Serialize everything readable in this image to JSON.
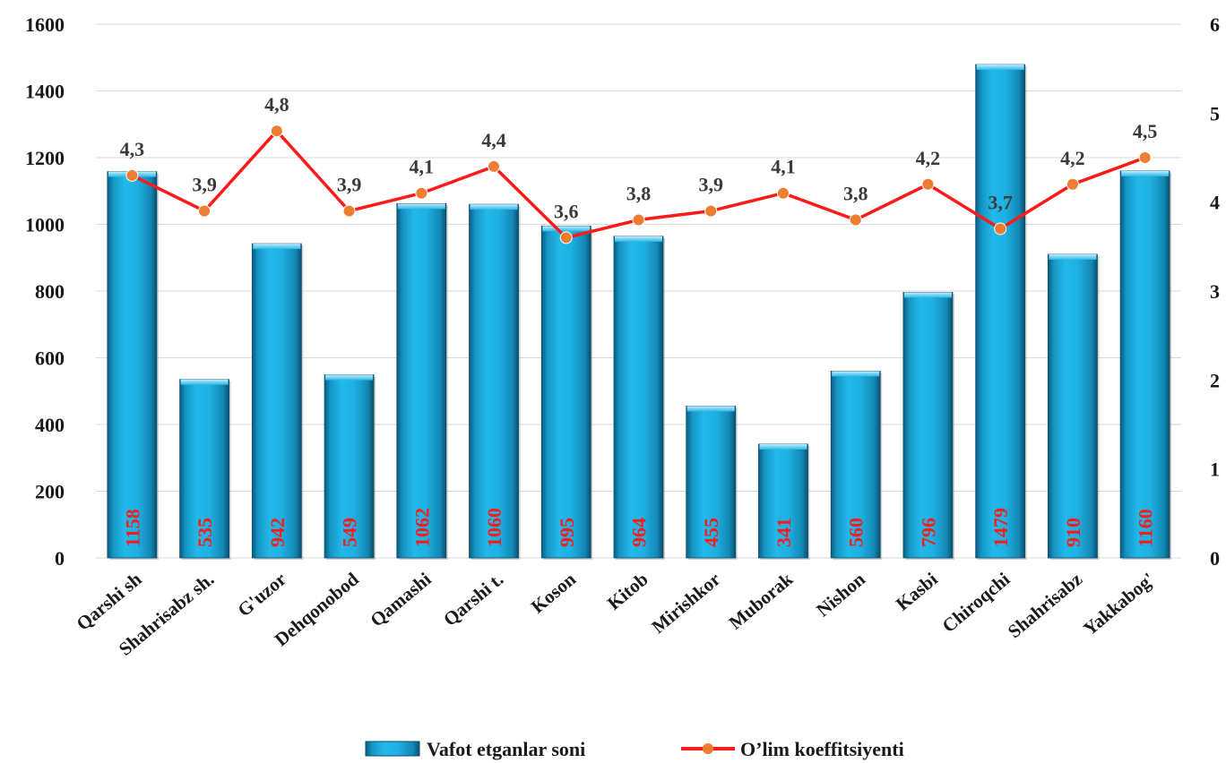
{
  "chart_data": {
    "type": "bar",
    "categories": [
      "Qarshi sh",
      "Shahrisabz sh.",
      "G'uzor",
      "Dehqonobod",
      "Qamashi",
      "Qarshi t.",
      "Koson",
      "Kitob",
      "Mirishkor",
      "Muborak",
      "Nishon",
      "Kasbi",
      "Chiroqchi",
      "Shahrisabz",
      "Yakkabog'"
    ],
    "series": [
      {
        "name": "Vafot etganlar soni",
        "type": "bar",
        "axis": "left",
        "color": "#1aa7d8",
        "values": [
          1158,
          535,
          942,
          549,
          1062,
          1060,
          995,
          964,
          455,
          341,
          560,
          796,
          1479,
          910,
          1160
        ],
        "labels": [
          "1158",
          "535",
          "942",
          "549",
          "1062",
          "1060",
          "995",
          "964",
          "455",
          "341",
          "560",
          "796",
          "1479",
          "910",
          "1160"
        ]
      },
      {
        "name": "O’lim koeffitsiyenti",
        "type": "line",
        "axis": "right",
        "color": "#ff1a1a",
        "marker_color": "#ed7d31",
        "values": [
          4.3,
          3.9,
          4.8,
          3.9,
          4.1,
          4.4,
          3.6,
          3.8,
          3.9,
          4.1,
          3.8,
          4.2,
          3.7,
          4.2,
          4.5
        ],
        "labels": [
          "4,3",
          "3,9",
          "4,8",
          "3,9",
          "4,1",
          "4,4",
          "3,6",
          "3,8",
          "3,9",
          "4,1",
          "3,8",
          "4,2",
          "3,7",
          "4,2",
          "4,5"
        ]
      }
    ],
    "y_left": {
      "ylim": [
        0,
        1600
      ],
      "ticks": [
        "0",
        "200",
        "400",
        "600",
        "800",
        "1000",
        "1200",
        "1400",
        "1600"
      ]
    },
    "y_right": {
      "ylim": [
        0,
        6
      ],
      "ticks": [
        "0",
        "1",
        "2",
        "3",
        "4",
        "5",
        "6"
      ]
    },
    "grid": true,
    "legend_position": "bottom"
  }
}
